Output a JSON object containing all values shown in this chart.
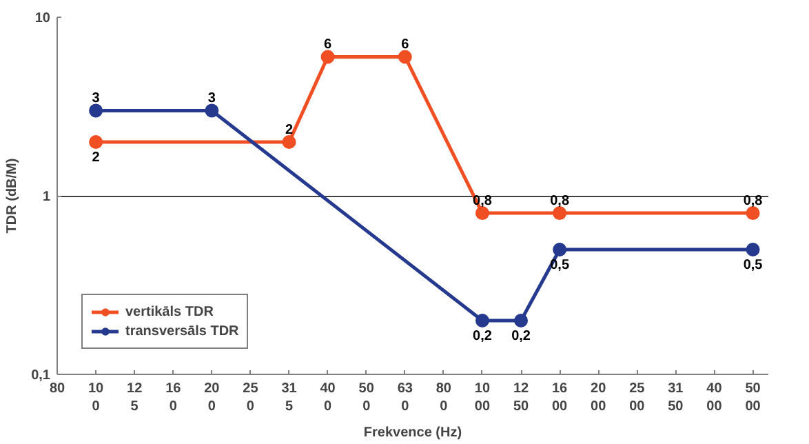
{
  "chart_data": {
    "type": "line",
    "xlabel": "Frekvence (Hz)",
    "ylabel": "TDR (dB/M)",
    "categories": [
      "80",
      "100",
      "125",
      "160",
      "200",
      "250",
      "315",
      "400",
      "500",
      "630",
      "800",
      "1000",
      "1250",
      "1600",
      "2000",
      "2500",
      "3150",
      "4000",
      "5000"
    ],
    "series": [
      {
        "name": "vertikāls TDR",
        "color": "#f04e23",
        "values": [
          null,
          2,
          null,
          null,
          null,
          null,
          2,
          6,
          null,
          6,
          null,
          0.8,
          null,
          0.8,
          null,
          null,
          null,
          null,
          0.8
        ],
        "value_labels": [
          null,
          "2",
          null,
          null,
          null,
          null,
          "2",
          "6",
          null,
          "6",
          null,
          "0,8",
          null,
          "0,8",
          null,
          null,
          null,
          null,
          "0,8"
        ]
      },
      {
        "name": "transversāls TDR",
        "color": "#253a8e",
        "values": [
          null,
          3,
          null,
          null,
          3,
          null,
          null,
          null,
          null,
          null,
          null,
          0.2,
          0.2,
          0.5,
          null,
          null,
          null,
          null,
          0.5
        ],
        "value_labels": [
          null,
          "3",
          null,
          null,
          "3",
          null,
          null,
          null,
          null,
          null,
          null,
          "0,2",
          "0,2",
          "0,5",
          null,
          null,
          null,
          null,
          "0,5"
        ]
      }
    ],
    "log": "y",
    "ylim": [
      0.1,
      10
    ],
    "yticks": [
      {
        "value": 0.1,
        "label": "0,1"
      },
      1,
      10
    ],
    "grid": "y",
    "legend": "bottom left",
    "marker": "circle",
    "line_style": "solid"
  }
}
